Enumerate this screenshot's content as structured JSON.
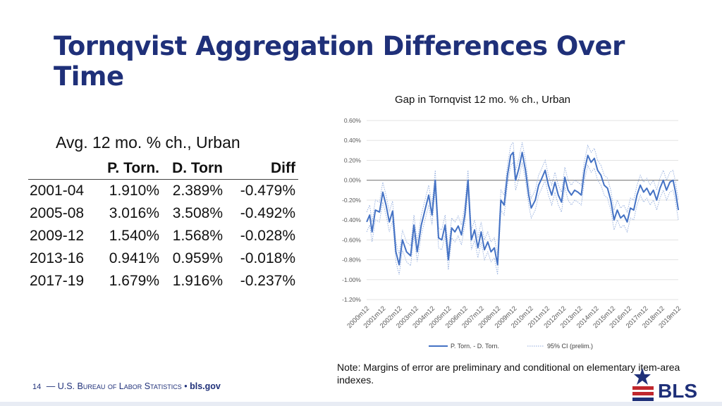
{
  "slide": {
    "title": "Tornqvist Aggregation Differences Over Time",
    "note": "Note: Margins of error are preliminary and conditional on elementary item-area indexes.",
    "footer": {
      "page": "14",
      "dash": "—",
      "org": "U.S. Bureau of Labor Statistics",
      "bullet": "•",
      "site": "bls.gov"
    },
    "logo_text": "BLS",
    "colors": {
      "title": "#1f3079",
      "series": "#4472c4",
      "ci": "#8faadc",
      "logo_red": "#c0272d"
    }
  },
  "table": {
    "title": "Avg. 12 mo. % ch., Urban",
    "headers": [
      "",
      "P. Torn.",
      "D. Torn",
      "Diff"
    ],
    "rows": [
      [
        "2001-04",
        "1.910%",
        "2.389%",
        "-0.479%"
      ],
      [
        "2005-08",
        "3.016%",
        "3.508%",
        "-0.492%"
      ],
      [
        "2009-12",
        "1.540%",
        "1.568%",
        "-0.028%"
      ],
      [
        "2013-16",
        "0.941%",
        "0.959%",
        "-0.018%"
      ],
      [
        "2017-19",
        "1.679%",
        "1.916%",
        "-0.237%"
      ]
    ]
  },
  "chart_data": {
    "type": "line",
    "title": "Gap in Tornqvist 12 mo. % ch., Urban",
    "ylim": [
      -1.2,
      0.6
    ],
    "yticks": [
      "0.60%",
      "0.40%",
      "0.20%",
      "0.00%",
      "-0.20%",
      "-0.40%",
      "-0.60%",
      "-0.80%",
      "-1.00%",
      "-1.20%"
    ],
    "ytick_values": [
      0.6,
      0.4,
      0.2,
      0.0,
      -0.2,
      -0.4,
      -0.6,
      -0.8,
      -1.0,
      -1.2
    ],
    "categories": [
      "2000m12",
      "2001m12",
      "2002m12",
      "2003m12",
      "2004m12",
      "2005m12",
      "2006m12",
      "2007m12",
      "2008m12",
      "2009m12",
      "2010m12",
      "2011m12",
      "2012m12",
      "2013m12",
      "2014m12",
      "2015m12",
      "2016m12",
      "2017m12",
      "2018m12",
      "2019m12"
    ],
    "x_start_year": 2000.917,
    "x_end_year": 2019.917,
    "legend": [
      "P. Torn. - D. Torn.",
      "95% CI (prelim.)"
    ],
    "legend_position": "bottom",
    "ci_halfwidth": 0.1,
    "series": [
      {
        "name": "P. Torn. - D. Torn.",
        "points": [
          [
            2000.92,
            -0.42
          ],
          [
            2001.1,
            -0.35
          ],
          [
            2001.25,
            -0.52
          ],
          [
            2001.45,
            -0.3
          ],
          [
            2001.7,
            -0.32
          ],
          [
            2001.9,
            -0.12
          ],
          [
            2002.1,
            -0.25
          ],
          [
            2002.3,
            -0.42
          ],
          [
            2002.5,
            -0.31
          ],
          [
            2002.7,
            -0.72
          ],
          [
            2002.9,
            -0.85
          ],
          [
            2003.1,
            -0.6
          ],
          [
            2003.35,
            -0.72
          ],
          [
            2003.6,
            -0.76
          ],
          [
            2003.8,
            -0.45
          ],
          [
            2004.0,
            -0.72
          ],
          [
            2004.25,
            -0.45
          ],
          [
            2004.5,
            -0.28
          ],
          [
            2004.7,
            -0.15
          ],
          [
            2004.9,
            -0.35
          ],
          [
            2005.1,
            0.0
          ],
          [
            2005.3,
            -0.58
          ],
          [
            2005.5,
            -0.6
          ],
          [
            2005.7,
            -0.45
          ],
          [
            2005.9,
            -0.8
          ],
          [
            2006.1,
            -0.48
          ],
          [
            2006.3,
            -0.52
          ],
          [
            2006.5,
            -0.46
          ],
          [
            2006.7,
            -0.55
          ],
          [
            2006.9,
            -0.35
          ],
          [
            2007.1,
            0.0
          ],
          [
            2007.3,
            -0.6
          ],
          [
            2007.5,
            -0.5
          ],
          [
            2007.7,
            -0.68
          ],
          [
            2007.9,
            -0.52
          ],
          [
            2008.1,
            -0.7
          ],
          [
            2008.3,
            -0.62
          ],
          [
            2008.5,
            -0.72
          ],
          [
            2008.7,
            -0.68
          ],
          [
            2008.9,
            -0.85
          ],
          [
            2009.1,
            -0.2
          ],
          [
            2009.3,
            -0.25
          ],
          [
            2009.5,
            0.05
          ],
          [
            2009.7,
            0.25
          ],
          [
            2009.85,
            0.28
          ],
          [
            2010.0,
            0.0
          ],
          [
            2010.2,
            0.12
          ],
          [
            2010.4,
            0.28
          ],
          [
            2010.6,
            0.1
          ],
          [
            2010.8,
            -0.15
          ],
          [
            2010.95,
            -0.28
          ],
          [
            2011.2,
            -0.2
          ],
          [
            2011.4,
            -0.05
          ],
          [
            2011.6,
            0.02
          ],
          [
            2011.8,
            0.1
          ],
          [
            2012.0,
            -0.05
          ],
          [
            2012.2,
            -0.15
          ],
          [
            2012.4,
            -0.02
          ],
          [
            2012.6,
            -0.15
          ],
          [
            2012.8,
            -0.22
          ],
          [
            2013.0,
            0.03
          ],
          [
            2013.2,
            -0.1
          ],
          [
            2013.4,
            -0.15
          ],
          [
            2013.6,
            -0.1
          ],
          [
            2013.8,
            -0.12
          ],
          [
            2014.0,
            -0.15
          ],
          [
            2014.2,
            0.1
          ],
          [
            2014.4,
            0.25
          ],
          [
            2014.6,
            0.18
          ],
          [
            2014.8,
            0.22
          ],
          [
            2015.0,
            0.1
          ],
          [
            2015.2,
            0.05
          ],
          [
            2015.4,
            -0.05
          ],
          [
            2015.6,
            -0.08
          ],
          [
            2015.8,
            -0.2
          ],
          [
            2016.0,
            -0.4
          ],
          [
            2016.2,
            -0.3
          ],
          [
            2016.4,
            -0.38
          ],
          [
            2016.6,
            -0.35
          ],
          [
            2016.8,
            -0.42
          ],
          [
            2017.0,
            -0.28
          ],
          [
            2017.2,
            -0.3
          ],
          [
            2017.4,
            -0.15
          ],
          [
            2017.6,
            -0.05
          ],
          [
            2017.8,
            -0.12
          ],
          [
            2018.0,
            -0.08
          ],
          [
            2018.2,
            -0.15
          ],
          [
            2018.4,
            -0.1
          ],
          [
            2018.6,
            -0.2
          ],
          [
            2018.8,
            -0.08
          ],
          [
            2019.0,
            0.0
          ],
          [
            2019.2,
            -0.1
          ],
          [
            2019.4,
            -0.02
          ],
          [
            2019.6,
            0.0
          ],
          [
            2019.75,
            -0.12
          ],
          [
            2019.92,
            -0.3
          ]
        ]
      }
    ]
  }
}
